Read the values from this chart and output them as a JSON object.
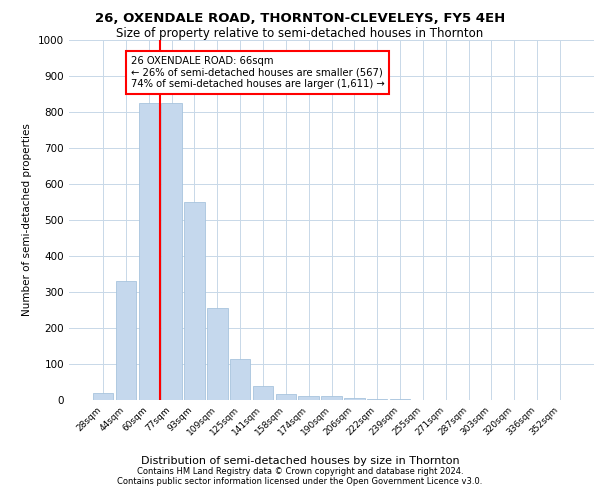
{
  "title1": "26, OXENDALE ROAD, THORNTON-CLEVELEYS, FY5 4EH",
  "title2": "Size of property relative to semi-detached houses in Thornton",
  "dist_label": "Distribution of semi-detached houses by size in Thornton",
  "ylabel": "Number of semi-detached properties",
  "footer1": "Contains HM Land Registry data © Crown copyright and database right 2024.",
  "footer2": "Contains public sector information licensed under the Open Government Licence v3.0.",
  "annotation_title": "26 OXENDALE ROAD: 66sqm",
  "annotation_line1": "← 26% of semi-detached houses are smaller (567)",
  "annotation_line2": "74% of semi-detached houses are larger (1,611) →",
  "bar_color": "#c5d8ed",
  "bar_edge_color": "#a8c4de",
  "vline_color": "red",
  "grid_color": "#c8d8e8",
  "categories": [
    "28sqm",
    "44sqm",
    "60sqm",
    "77sqm",
    "93sqm",
    "109sqm",
    "125sqm",
    "141sqm",
    "158sqm",
    "174sqm",
    "190sqm",
    "206sqm",
    "222sqm",
    "239sqm",
    "255sqm",
    "271sqm",
    "287sqm",
    "303sqm",
    "320sqm",
    "336sqm",
    "352sqm"
  ],
  "values": [
    20,
    330,
    825,
    825,
    550,
    255,
    115,
    40,
    18,
    12,
    10,
    5,
    3,
    2,
    1,
    1,
    0,
    0,
    0,
    0,
    0
  ],
  "vline_x": 2.5,
  "ylim": [
    0,
    1000
  ],
  "yticks": [
    0,
    100,
    200,
    300,
    400,
    500,
    600,
    700,
    800,
    900,
    1000
  ]
}
